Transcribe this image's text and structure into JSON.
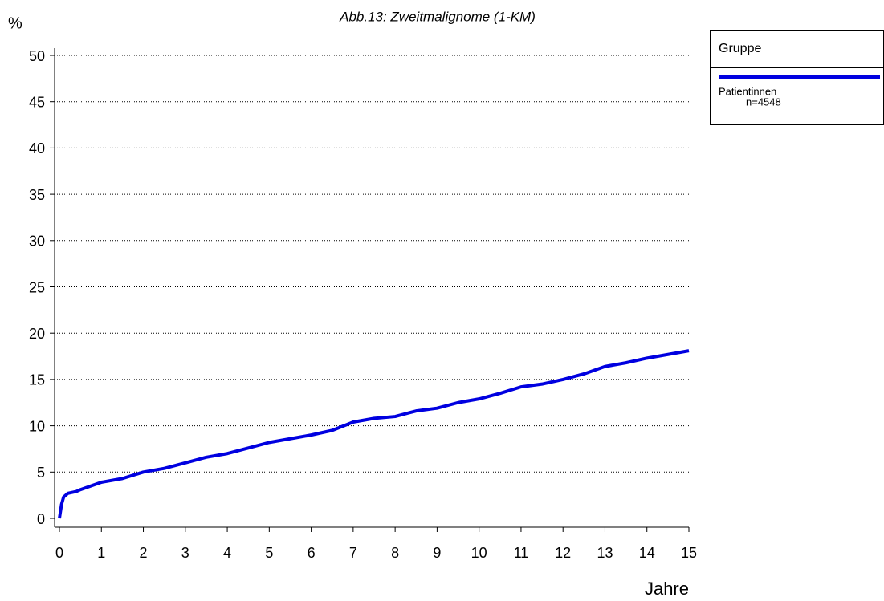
{
  "chart_data": {
    "type": "line",
    "title": "Abb.13: Zweitmalignome (1-KM)",
    "y_label": "%",
    "x_label": "Jahre",
    "legend_title": "Gruppe",
    "legend_note": "n=4548",
    "x": [
      0,
      0.05,
      0.1,
      0.2,
      0.4,
      0.5,
      1,
      1.5,
      2,
      2.5,
      3,
      3.5,
      4,
      4.5,
      5,
      5.5,
      6,
      6.5,
      7,
      7.5,
      8,
      8.5,
      9,
      9.5,
      10,
      10.5,
      11,
      11.5,
      12,
      12.5,
      13,
      13.5,
      14,
      14.5,
      15
    ],
    "series": [
      {
        "name": "Patientinnen",
        "color": "#0000e0",
        "values": [
          0,
          1.5,
          2.3,
          2.7,
          2.9,
          3.1,
          3.9,
          4.3,
          5.0,
          5.4,
          6.0,
          6.6,
          7.0,
          7.6,
          8.2,
          8.6,
          9.0,
          9.5,
          10.4,
          10.8,
          11.0,
          11.6,
          11.9,
          12.5,
          12.9,
          13.5,
          14.2,
          14.5,
          15.0,
          15.6,
          16.4,
          16.8,
          17.3,
          17.7,
          18.1
        ]
      }
    ],
    "xlim": [
      0,
      15
    ],
    "xticks": [
      0,
      1,
      2,
      3,
      4,
      5,
      6,
      7,
      8,
      9,
      10,
      11,
      12,
      13,
      14,
      15
    ],
    "ylim": [
      0,
      50
    ],
    "yticks": [
      0,
      5,
      10,
      15,
      20,
      25,
      30,
      35,
      40,
      45,
      50
    ],
    "grid": true
  }
}
